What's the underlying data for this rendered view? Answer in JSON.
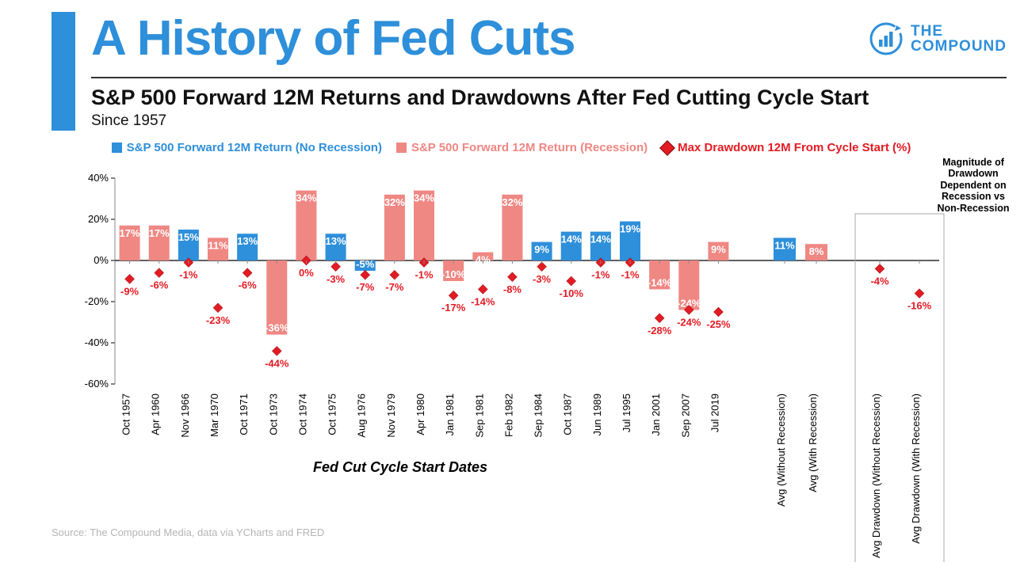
{
  "header": {
    "title": "A History of Fed Cuts",
    "subtitle": "S&P 500 Forward 12M Returns and Drawdowns After Fed Cutting Cycle Start",
    "since": "Since 1957",
    "brand_line1": "THE",
    "brand_line2": "COMPOUND",
    "title_color": "#2e8fda",
    "rule_color": "#333333"
  },
  "legend": {
    "items": [
      {
        "label": "S&P 500 Forward 12M Return (No Recession)",
        "color": "#2e8fda",
        "shape": "square"
      },
      {
        "label": "S&P 500 Forward 12M Return (Recession)",
        "color": "#ef8783",
        "shape": "square"
      },
      {
        "label": "Max Drawdown 12M From Cycle Start (%)",
        "color": "#e31b23",
        "shape": "diamond"
      }
    ]
  },
  "annotation": "Magnitude of Drawdown Dependent on Recession vs Non-Recession",
  "x_axis_title": "Fed Cut Cycle Start Dates",
  "source": "Source: The Compound Media, data via YCharts and FRED",
  "chart": {
    "type": "bar+scatter",
    "ylim": [
      -60,
      40
    ],
    "ytick_step": 20,
    "bar_width": 0.7,
    "grid_color": "#d9d9d9",
    "axis_color": "#000000",
    "colors": {
      "no_recession": "#2e8fda",
      "recession": "#ef8783",
      "drawdown_marker": "#e31b23",
      "drawdown_label": "#e31b23",
      "bar_label": "#ffffff",
      "bar_label_alt": "#000000"
    },
    "label_fontsize": 13,
    "tick_fontsize": 13,
    "groups": [
      {
        "label": "Oct 1957",
        "return": 17,
        "recession": true,
        "drawdown": -9
      },
      {
        "label": "Apr 1960",
        "return": 17,
        "recession": true,
        "drawdown": -6
      },
      {
        "label": "Nov 1966",
        "return": 15,
        "recession": false,
        "drawdown": -1
      },
      {
        "label": "Mar 1970",
        "return": 11,
        "recession": true,
        "drawdown": -23
      },
      {
        "label": "Oct 1971",
        "return": 13,
        "recession": false,
        "drawdown": -6
      },
      {
        "label": "Oct 1973",
        "return": -36,
        "recession": true,
        "drawdown": -44
      },
      {
        "label": "Oct 1974",
        "return": 34,
        "recession": true,
        "drawdown": 0
      },
      {
        "label": "Oct 1975",
        "return": 13,
        "recession": false,
        "drawdown": -3
      },
      {
        "label": "Aug 1976",
        "return": -5,
        "recession": false,
        "drawdown": -7
      },
      {
        "label": "Nov 1979",
        "return": 32,
        "recession": true,
        "drawdown": -7
      },
      {
        "label": "Apr 1980",
        "return": 34,
        "recession": true,
        "drawdown": -1
      },
      {
        "label": "Jan 1981",
        "return": -10,
        "recession": true,
        "drawdown": -17
      },
      {
        "label": "Sep 1981",
        "return": 4,
        "recession": true,
        "drawdown": -14
      },
      {
        "label": "Feb 1982",
        "return": 32,
        "recession": true,
        "drawdown": -8
      },
      {
        "label": "Sep 1984",
        "return": 9,
        "recession": false,
        "drawdown": -3
      },
      {
        "label": "Oct 1987",
        "return": 14,
        "recession": false,
        "drawdown": -10
      },
      {
        "label": "Jun 1989",
        "return": 14,
        "recession": false,
        "drawdown": -1
      },
      {
        "label": "Jul 1995",
        "return": 19,
        "recession": false,
        "drawdown": -1
      },
      {
        "label": "Jan 2001",
        "return": -14,
        "recession": true,
        "drawdown": -28
      },
      {
        "label": "Sep 2007",
        "return": -24,
        "recession": true,
        "drawdown": -24
      },
      {
        "label": "Jul 2019",
        "return": 9,
        "recession": true,
        "drawdown": -25
      }
    ],
    "summary_returns": [
      {
        "label": "Avg (Without Recession)",
        "return": 11,
        "recession": false
      },
      {
        "label": "Avg (With Recession)",
        "return": 8,
        "recession": true
      }
    ],
    "summary_drawdowns": [
      {
        "label": "Avg Drawdown (Without Recession)",
        "drawdown": -4
      },
      {
        "label": "Avg Drawdown (With Recession)",
        "drawdown": -16
      }
    ]
  }
}
